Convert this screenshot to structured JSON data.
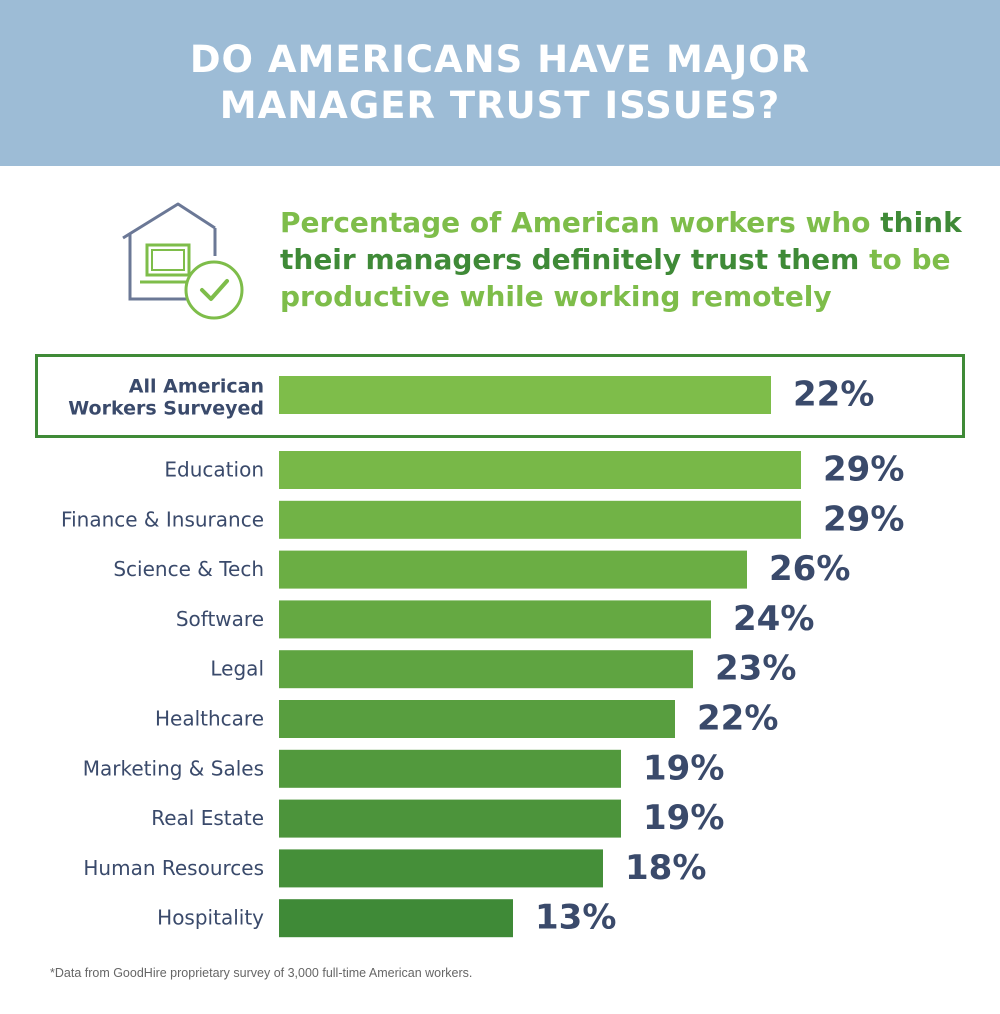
{
  "header": {
    "title": "DO AMERICANS HAVE MAJOR MANAGER TRUST ISSUES?"
  },
  "subtitle": {
    "part1": "Percentage of American workers who ",
    "part2": "think their managers definitely trust them",
    "part3": " to be productive while working remotely"
  },
  "icon": {
    "name": "house-laptop-check-icon"
  },
  "colors": {
    "header_bg": "#9dbcd6",
    "light_green": "#7ebd4a",
    "dark_green": "#3f8a37",
    "value_text": "#3a4a6b",
    "label_text": "#3a4a6b"
  },
  "chart_data": {
    "type": "bar",
    "orientation": "horizontal",
    "title": "",
    "xlabel": "",
    "ylabel": "",
    "xlim": [
      0,
      30
    ],
    "highlight": {
      "category": "All American Workers Surveyed",
      "value": 22,
      "label": "22%"
    },
    "categories": [
      "Education",
      "Finance & Insurance",
      "Science & Tech",
      "Software",
      "Legal",
      "Healthcare",
      "Marketing & Sales",
      "Real Estate",
      "Human Resources",
      "Hospitality"
    ],
    "values": [
      29,
      29,
      26,
      24,
      23,
      22,
      19,
      19,
      18,
      13
    ],
    "value_labels": [
      "29%",
      "29%",
      "26%",
      "24%",
      "23%",
      "22%",
      "19%",
      "19%",
      "18%",
      "13%"
    ],
    "unit": "%",
    "grid": false,
    "legend": "none"
  },
  "footnote": "*Data from GoodHire proprietary survey of 3,000 full-time American workers."
}
